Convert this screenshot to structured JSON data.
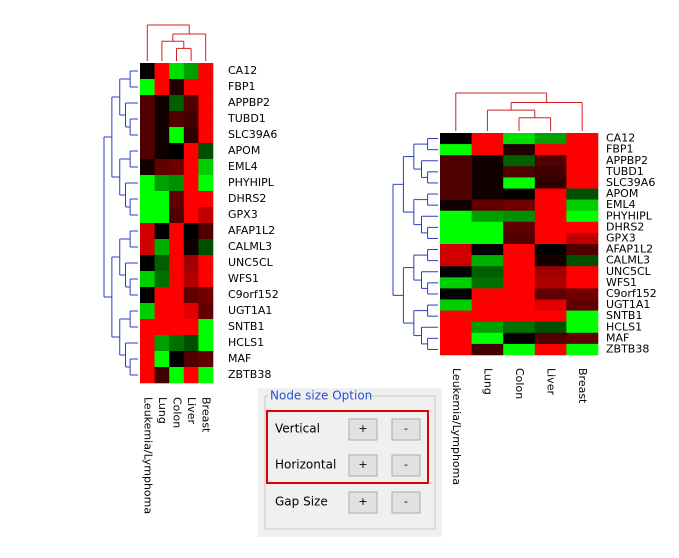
{
  "heatmap": {
    "genes": [
      "CA12",
      "FBP1",
      "APPBP2",
      "TUBD1",
      "SLC39A6",
      "APOM",
      "EML4",
      "PHYHIPL",
      "DHRS2",
      "GPX3",
      "AFAP1L2",
      "CALML3",
      "UNC5CL",
      "WFS1",
      "C9orf152",
      "UGT1A1",
      "SNTB1",
      "HCLS1",
      "MAF",
      "ZBTB38"
    ],
    "columns": [
      "Leukemia/Lymphoma",
      "Lung",
      "Colon",
      "Liver",
      "Breast"
    ],
    "cells": [
      [
        "#000000",
        "#ff0000",
        "#00e000",
        "#00a000",
        "#ff0000"
      ],
      [
        "#00ff00",
        "#ff0000",
        "#200000",
        "#ff0000",
        "#ff0000"
      ],
      [
        "#500000",
        "#100000",
        "#006000",
        "#500000",
        "#ff0000"
      ],
      [
        "#500000",
        "#100000",
        "#500000",
        "#400000",
        "#ff0000"
      ],
      [
        "#500000",
        "#100000",
        "#00ff00",
        "#300000",
        "#ff0000"
      ],
      [
        "#500000",
        "#100000",
        "#000000",
        "#ff0000",
        "#005000"
      ],
      [
        "#100000",
        "#600000",
        "#700000",
        "#ff0000",
        "#00d000"
      ],
      [
        "#00ff00",
        "#00a000",
        "#009000",
        "#ff0000",
        "#00ff00"
      ],
      [
        "#00ff00",
        "#00ff00",
        "#600000",
        "#ff0000",
        "#ff0000"
      ],
      [
        "#00ff00",
        "#00ff00",
        "#500000",
        "#ff0000",
        "#c00000"
      ],
      [
        "#d00000",
        "#000000",
        "#ff0000",
        "#000000",
        "#500000"
      ],
      [
        "#d00000",
        "#00b000",
        "#ff0000",
        "#100000",
        "#005000"
      ],
      [
        "#000000",
        "#006000",
        "#ff0000",
        "#a00000",
        "#ff0000"
      ],
      [
        "#00d000",
        "#007000",
        "#ff0000",
        "#b00000",
        "#ff0000"
      ],
      [
        "#000000",
        "#ff0000",
        "#ff0000",
        "#600000",
        "#700000"
      ],
      [
        "#00d000",
        "#ff0000",
        "#ff0000",
        "#e00000",
        "#600000"
      ],
      [
        "#ff0000",
        "#ff0000",
        "#ff0000",
        "#ff0000",
        "#00ff00"
      ],
      [
        "#ff0000",
        "#00a000",
        "#007000",
        "#005000",
        "#00ff00"
      ],
      [
        "#ff0000",
        "#00ff00",
        "#000000",
        "#500000",
        "#600000"
      ],
      [
        "#ff0000",
        "#400000",
        "#00ff00",
        "#ff0000",
        "#00ff00"
      ]
    ]
  },
  "panel": {
    "title": "Node size Option",
    "rows": [
      {
        "label": "Vertical",
        "plus": "+",
        "minus": "-"
      },
      {
        "label": "Horizontal",
        "plus": "+",
        "minus": "-"
      },
      {
        "label": "Gap Size",
        "plus": "+",
        "minus": "-"
      }
    ]
  }
}
